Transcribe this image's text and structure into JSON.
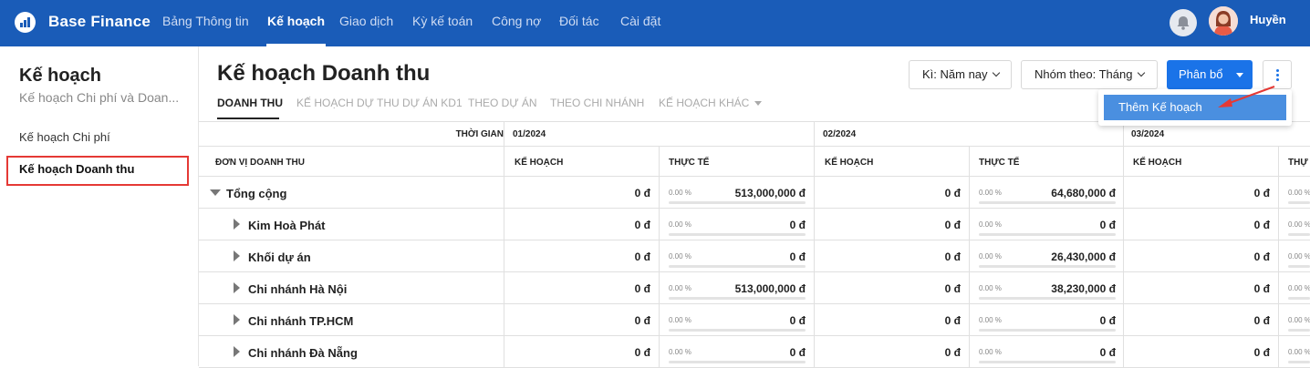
{
  "header": {
    "brand": "Base Finance",
    "nav": [
      "Bảng Thông tin",
      "Kế hoạch",
      "Giao dịch",
      "Kỳ kế toán",
      "Công nợ",
      "Đối tác",
      "Cài đặt"
    ],
    "active_nav": "Kế hoạch",
    "username": "Huyền",
    "brand_color": "#1a5cb8"
  },
  "sidebar": {
    "title": "Kế hoạch",
    "subtitle": "Kế hoạch Chi phí và Doan...",
    "items": [
      "Kế hoạch Chi phí",
      "Kế hoạch Doanh thu"
    ],
    "selected": "Kế hoạch Doanh thu"
  },
  "main": {
    "title": "Kế hoạch Doanh thu",
    "period_select": "Kì: Năm nay",
    "group_select": "Nhóm theo: Tháng",
    "allocate_button": "Phân bổ",
    "more_menu_item": "Thêm Kế hoạch",
    "tabs": [
      "DOANH THU",
      "KẾ HOẠCH DỰ THU DỰ ÁN KD1",
      "THEO DỰ ÁN",
      "THEO CHI NHÁNH",
      "KẾ HOẠCH KHÁC"
    ],
    "active_tab": "DOANH THU"
  },
  "table": {
    "time_label": "THỜI GIAN",
    "unit_label": "ĐƠN VỊ DOANH THU",
    "periods": [
      "01/2024",
      "02/2024",
      "03/2024"
    ],
    "plan_label": "KẾ HOẠCH",
    "actual_label": "THỰC TẾ",
    "actual_label_cut": "THỰ",
    "rows": [
      {
        "name": "Tổng cộng",
        "p1": "0 đ",
        "pct1": "0.00 %",
        "a1": "513,000,000 đ",
        "p2": "0 đ",
        "pct2": "0.00 %",
        "a2": "64,680,000 đ",
        "p3": "0 đ",
        "pct3": "0.00 %"
      },
      {
        "name": "Kim Hoà Phát",
        "p1": "0 đ",
        "pct1": "0.00 %",
        "a1": "0 đ",
        "p2": "0 đ",
        "pct2": "0.00 %",
        "a2": "0 đ",
        "p3": "0 đ",
        "pct3": "0.00 %"
      },
      {
        "name": "Khối dự án",
        "p1": "0 đ",
        "pct1": "0.00 %",
        "a1": "0 đ",
        "p2": "0 đ",
        "pct2": "0.00 %",
        "a2": "26,430,000 đ",
        "p3": "0 đ",
        "pct3": "0.00 %"
      },
      {
        "name": "Chi nhánh Hà Nội",
        "p1": "0 đ",
        "pct1": "0.00 %",
        "a1": "513,000,000 đ",
        "p2": "0 đ",
        "pct2": "0.00 %",
        "a2": "38,230,000 đ",
        "p3": "0 đ",
        "pct3": "0.00 %"
      },
      {
        "name": "Chi nhánh TP.HCM",
        "p1": "0 đ",
        "pct1": "0.00 %",
        "a1": "0 đ",
        "p2": "0 đ",
        "pct2": "0.00 %",
        "a2": "0 đ",
        "p3": "0 đ",
        "pct3": "0.00 %"
      },
      {
        "name": "Chi nhánh Đà Nẵng",
        "p1": "0 đ",
        "pct1": "0.00 %",
        "a1": "0 đ",
        "p2": "0 đ",
        "pct2": "0.00 %",
        "a2": "0 đ",
        "p3": "0 đ",
        "pct3": "0.00 %"
      }
    ]
  }
}
